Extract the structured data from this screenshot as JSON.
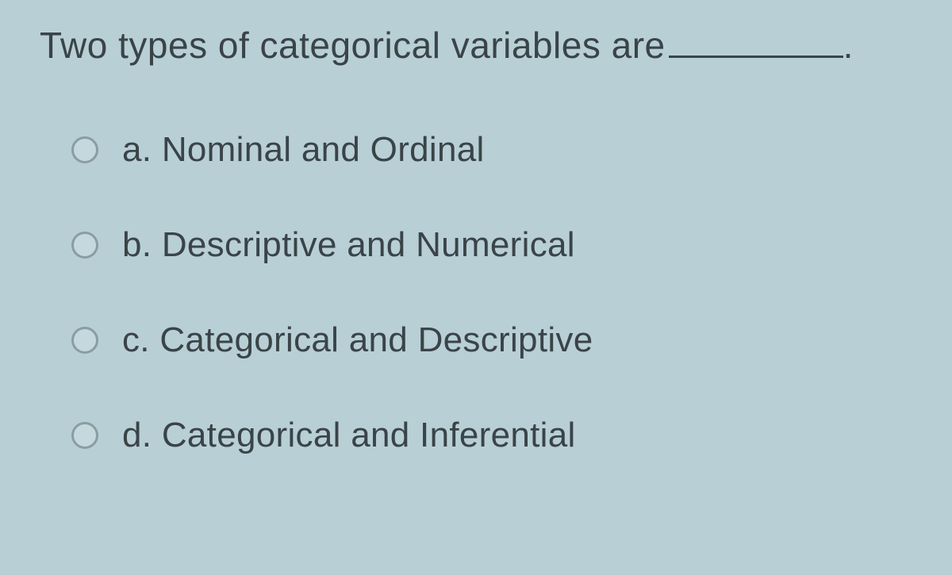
{
  "question": {
    "text_before_blank": "Two types of categorical variables are",
    "text_after_blank": "."
  },
  "options": [
    {
      "letter": "a.",
      "text": "Nominal and Ordinal",
      "selected": false
    },
    {
      "letter": "b.",
      "text": "Descriptive and Numerical",
      "selected": false
    },
    {
      "letter": "c.",
      "text": "Categorical and Descriptive",
      "selected": false
    },
    {
      "letter": "d.",
      "text": "Categorical and Inferential",
      "selected": false
    }
  ],
  "styling": {
    "background_color": "#b8cfd6",
    "text_color": "#3a4448",
    "radio_border_color": "#8a9da3",
    "radio_fill_color": "#c5d8de",
    "question_fontsize": 46,
    "option_fontsize": 44
  }
}
